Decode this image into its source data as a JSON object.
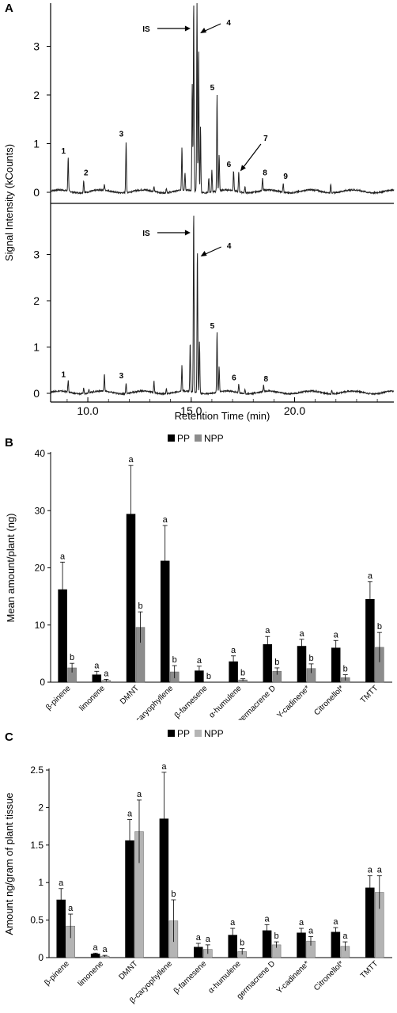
{
  "chart_data": [
    {
      "panel": "A",
      "type": "line",
      "xlabel": "Retention Time (min)",
      "ylabel": "Signal Intensity (kCounts)",
      "xlim": [
        8.2,
        24.8
      ],
      "ylim": [
        -0.15,
        3.9
      ],
      "x_ticks": [
        "10.0",
        "15.0",
        "20.0"
      ],
      "y_ticks": [
        "0",
        "1",
        "2",
        "3"
      ],
      "colors": {
        "trace": "#222222"
      },
      "traces": [
        {
          "peaks": [
            {
              "x": 9.05,
              "y": 0.7,
              "label": "1"
            },
            {
              "x": 9.8,
              "y": 0.25,
              "label": "2"
            },
            {
              "x": 10.8,
              "y": 0.12,
              "label": ""
            },
            {
              "x": 11.85,
              "y": 1.05,
              "label": "3"
            },
            {
              "x": 13.2,
              "y": 0.1,
              "label": ""
            },
            {
              "x": 13.8,
              "y": 0.1,
              "label": ""
            },
            {
              "x": 14.55,
              "y": 0.88,
              "label": ""
            },
            {
              "x": 14.7,
              "y": 0.35,
              "label": ""
            },
            {
              "x": 15.05,
              "y": 2.2,
              "label": ""
            },
            {
              "x": 15.12,
              "y": 3.9,
              "label": "IS"
            },
            {
              "x": 15.28,
              "y": 3.9,
              "label": "4"
            },
            {
              "x": 15.36,
              "y": 2.95,
              "label": ""
            },
            {
              "x": 15.45,
              "y": 1.35,
              "label": ""
            },
            {
              "x": 15.85,
              "y": 0.3,
              "label": ""
            },
            {
              "x": 16.0,
              "y": 0.45,
              "label": ""
            },
            {
              "x": 16.25,
              "y": 2.0,
              "label": "5"
            },
            {
              "x": 16.35,
              "y": 0.75,
              "label": ""
            },
            {
              "x": 17.05,
              "y": 0.42,
              "label": "6"
            },
            {
              "x": 17.3,
              "y": 0.4,
              "label": "7"
            },
            {
              "x": 17.6,
              "y": 0.12,
              "label": ""
            },
            {
              "x": 18.45,
              "y": 0.25,
              "label": "8"
            },
            {
              "x": 19.45,
              "y": 0.18,
              "label": "9"
            },
            {
              "x": 21.75,
              "y": 0.18,
              "label": ""
            }
          ]
        },
        {
          "peaks": [
            {
              "x": 9.05,
              "y": 0.25,
              "label": "1"
            },
            {
              "x": 9.8,
              "y": 0.12,
              "label": ""
            },
            {
              "x": 10.05,
              "y": 0.08,
              "label": ""
            },
            {
              "x": 10.8,
              "y": 0.38,
              "label": ""
            },
            {
              "x": 11.85,
              "y": 0.22,
              "label": "3"
            },
            {
              "x": 13.2,
              "y": 0.25,
              "label": ""
            },
            {
              "x": 13.8,
              "y": 0.12,
              "label": ""
            },
            {
              "x": 14.55,
              "y": 0.55,
              "label": ""
            },
            {
              "x": 14.95,
              "y": 1.05,
              "label": ""
            },
            {
              "x": 15.12,
              "y": 3.9,
              "label": "IS"
            },
            {
              "x": 15.3,
              "y": 3.1,
              "label": "4"
            },
            {
              "x": 15.4,
              "y": 1.1,
              "label": ""
            },
            {
              "x": 16.25,
              "y": 1.3,
              "label": "5"
            },
            {
              "x": 16.35,
              "y": 0.55,
              "label": ""
            },
            {
              "x": 17.3,
              "y": 0.18,
              "label": "6"
            },
            {
              "x": 17.6,
              "y": 0.08,
              "label": ""
            },
            {
              "x": 18.5,
              "y": 0.15,
              "label": "8"
            },
            {
              "x": 21.8,
              "y": 0.07,
              "label": ""
            }
          ]
        }
      ],
      "annotations": [
        "IS",
        "4",
        "IS",
        "4"
      ]
    },
    {
      "panel": "B",
      "type": "bar",
      "ylabel": "Mean amount/plant (ng)",
      "ylim": [
        0,
        40
      ],
      "y_ticks": [
        "0",
        "10",
        "20",
        "30",
        "40"
      ],
      "categories": [
        "β-pinene",
        "limonene",
        "DMNT",
        "β-caryophyllene",
        "β-farnesene",
        "α-humulene",
        "germacrene D",
        "Y-cadinene*",
        "Citronellol*",
        "TMTT"
      ],
      "series": [
        {
          "name": "PP",
          "color": "#000000",
          "values": [
            16.2,
            1.3,
            29.4,
            21.2,
            2.0,
            3.6,
            6.6,
            6.3,
            6.0,
            14.5
          ],
          "errors": [
            4.8,
            0.6,
            8.5,
            6.2,
            0.8,
            1.0,
            1.4,
            1.2,
            1.3,
            3.1
          ],
          "labels": [
            "a",
            "a",
            "a",
            "a",
            "a",
            "a",
            "a",
            "a",
            "a",
            "a"
          ]
        },
        {
          "name": "NPP",
          "color": "#8c8c8c",
          "values": [
            2.5,
            0.3,
            9.6,
            1.8,
            0.0,
            0.4,
            1.9,
            2.4,
            0.8,
            6.1
          ],
          "errors": [
            0.8,
            0.2,
            2.7,
            1.1,
            0.0,
            0.2,
            0.6,
            0.8,
            0.5,
            2.6
          ],
          "labels": [
            "b",
            "a",
            "b",
            "b",
            "b",
            "b",
            "b",
            "b",
            "b",
            "b"
          ]
        }
      ],
      "legend": "top-center"
    },
    {
      "panel": "C",
      "type": "bar",
      "ylabel": "Amount ng/gram of plant tissue",
      "ylim": [
        0,
        2.5
      ],
      "y_ticks": [
        "0",
        "0.5",
        "1",
        "1.5",
        "2",
        "2.5"
      ],
      "categories": [
        "β-pinene",
        "limonene",
        "DMNT",
        "β-caryophyllene",
        "β-farnesene",
        "α-humulene",
        "germacrene D",
        "Y-cadinene*",
        "Citronellol*",
        "TMTT"
      ],
      "series": [
        {
          "name": "PP",
          "color": "#000000",
          "values": [
            0.77,
            0.05,
            1.56,
            1.85,
            0.14,
            0.3,
            0.36,
            0.33,
            0.34,
            0.93
          ],
          "errors": [
            0.15,
            0.01,
            0.28,
            0.62,
            0.05,
            0.09,
            0.08,
            0.06,
            0.06,
            0.16
          ],
          "labels": [
            "a",
            "a",
            "a",
            "a",
            "a",
            "a",
            "a",
            "a",
            "a",
            "a"
          ]
        },
        {
          "name": "NPP",
          "color": "#b4b4b4",
          "values": [
            0.42,
            0.02,
            1.68,
            0.49,
            0.11,
            0.08,
            0.17,
            0.22,
            0.15,
            0.87
          ],
          "errors": [
            0.16,
            0.01,
            0.42,
            0.28,
            0.06,
            0.04,
            0.04,
            0.06,
            0.06,
            0.22
          ],
          "labels": [
            "a",
            "a",
            "a",
            "b",
            "a",
            "b",
            "b",
            "a",
            "a",
            "a"
          ]
        }
      ],
      "legend": "top-center"
    }
  ]
}
